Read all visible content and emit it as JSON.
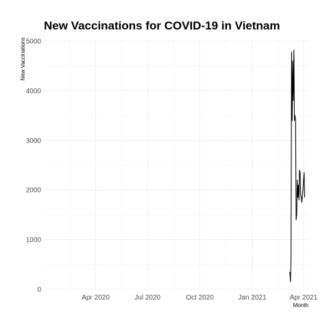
{
  "chart_data": {
    "type": "line",
    "title": "New Vaccinations for COVID-19 in Vietnam",
    "xlabel": "Month",
    "ylabel": "New Vaccinations",
    "x_range": [
      "2020-01-01",
      "2021-04-12"
    ],
    "ylim": [
      0,
      5000
    ],
    "y_ticks": [
      0,
      1000,
      2000,
      3000,
      4000,
      5000
    ],
    "x_ticks": [
      {
        "date": "2020-04-01",
        "label": "Apr 2020"
      },
      {
        "date": "2020-07-01",
        "label": "Jul 2020"
      },
      {
        "date": "2020-10-01",
        "label": "Oct 2020"
      },
      {
        "date": "2021-01-01",
        "label": "Jan 2021"
      },
      {
        "date": "2021-04-01",
        "label": "Apr 2021"
      }
    ],
    "grid": true,
    "series": [
      {
        "x": [
          "2021-03-08",
          "2021-03-09",
          "2021-03-10",
          "2021-03-11",
          "2021-03-12",
          "2021-03-13",
          "2021-03-14",
          "2021-03-15",
          "2021-03-16",
          "2021-03-17",
          "2021-03-18",
          "2021-03-19",
          "2021-03-20",
          "2021-03-21",
          "2021-03-22",
          "2021-03-23",
          "2021-03-24",
          "2021-03-25",
          "2021-03-26",
          "2021-03-27",
          "2021-03-28",
          "2021-03-29",
          "2021-03-30",
          "2021-03-31",
          "2021-04-01",
          "2021-04-02",
          "2021-04-03"
        ],
        "y": [
          350,
          150,
          600,
          4780,
          3400,
          4600,
          3800,
          4820,
          3400,
          3500,
          3400,
          1400,
          1500,
          2200,
          1850,
          2100,
          1800,
          2400,
          2350,
          1900,
          1850,
          1750,
          1900,
          2000,
          2200,
          2350,
          1850
        ]
      }
    ]
  }
}
